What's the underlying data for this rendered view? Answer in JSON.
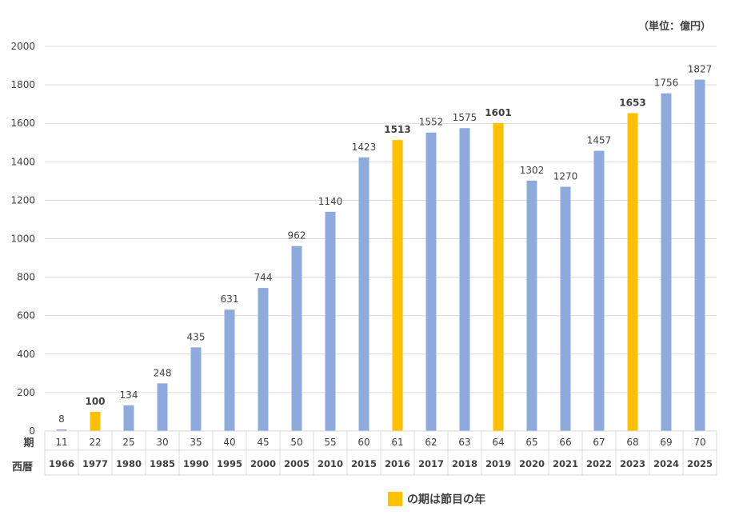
{
  "chart_data": {
    "type": "bar",
    "unit_label": "（単位：億円）",
    "row_labels": {
      "period": "期",
      "year": "西暦"
    },
    "periods": [
      "11",
      "22",
      "25",
      "30",
      "35",
      "40",
      "45",
      "50",
      "55",
      "60",
      "61",
      "62",
      "63",
      "64",
      "65",
      "66",
      "67",
      "68",
      "69",
      "70"
    ],
    "years": [
      "1966",
      "1977",
      "1980",
      "1985",
      "1990",
      "1995",
      "2000",
      "2005",
      "2010",
      "2015",
      "2016",
      "2017",
      "2018",
      "2019",
      "2020",
      "2021",
      "2022",
      "2023",
      "2024",
      "2025"
    ],
    "values": [
      8,
      100,
      134,
      248,
      435,
      631,
      744,
      962,
      1140,
      1423,
      1513,
      1552,
      1575,
      1601,
      1302,
      1270,
      1457,
      1653,
      1756,
      1827
    ],
    "highlighted": [
      false,
      true,
      false,
      false,
      false,
      false,
      false,
      false,
      false,
      false,
      true,
      false,
      false,
      true,
      false,
      false,
      false,
      true,
      false,
      false
    ],
    "ylim": [
      0,
      2000
    ],
    "yticks": [
      0,
      200,
      400,
      600,
      800,
      1000,
      1200,
      1400,
      1600,
      1800,
      2000
    ],
    "grid": true,
    "legend": {
      "label": "の期は節目の年",
      "position": "bottom-center"
    },
    "colors": {
      "bar": "#8EA9DB",
      "highlight": "#FFC000",
      "grid": "#D9D9D9",
      "text": "#404040"
    }
  }
}
